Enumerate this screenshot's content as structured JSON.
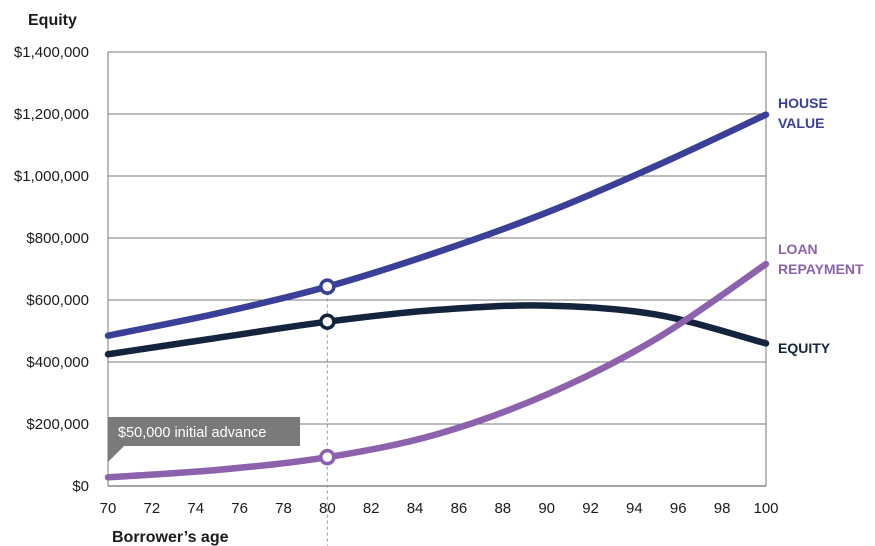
{
  "chart_data": {
    "type": "line",
    "ylabel": "Equity",
    "xlabel": "Borrower’s age",
    "xlim": [
      70,
      100
    ],
    "ylim": [
      0,
      1400000
    ],
    "x_ticks": [
      "70",
      "72",
      "74",
      "76",
      "78",
      "80",
      "82",
      "84",
      "86",
      "88",
      "90",
      "92",
      "94",
      "96",
      "98",
      "100"
    ],
    "y_ticks": [
      "$0",
      "$200,000",
      "$400,000",
      "$600,000",
      "$800,000",
      "$1,000,000",
      "$1,200,000",
      "$1,400,000"
    ],
    "grid": "horizontal",
    "series": [
      {
        "name": "HOUSE VALUE",
        "label_lines": [
          "HOUSE",
          "VALUE"
        ],
        "color": "#3a3f98",
        "x": [
          70,
          75,
          80,
          85,
          90,
          95,
          100
        ],
        "y": [
          485000,
          557000,
          643000,
          754000,
          882000,
          1033000,
          1198000
        ]
      },
      {
        "name": "EQUITY",
        "label_lines": [
          "EQUITY"
        ],
        "color": "#14243c",
        "x": [
          70,
          75,
          80,
          85,
          90,
          95,
          100
        ],
        "y": [
          425000,
          478000,
          530000,
          568000,
          582000,
          553000,
          460000
        ]
      },
      {
        "name": "LOAN REPAYMENT",
        "label_lines": [
          "LOAN",
          "REPAYMENT"
        ],
        "color": "#8c62ad",
        "x": [
          70,
          75,
          80,
          85,
          90,
          95,
          100
        ],
        "y": [
          28000,
          52000,
          93000,
          167000,
          295000,
          475000,
          716000
        ]
      }
    ],
    "markers": [
      {
        "x": 80,
        "y": 643000,
        "series": "HOUSE VALUE"
      },
      {
        "x": 80,
        "y": 530000,
        "series": "EQUITY"
      },
      {
        "x": 80,
        "y": 93000,
        "series": "LOAN REPAYMENT"
      }
    ],
    "reference_line": {
      "x": 80,
      "style": "dashed"
    },
    "annotation": {
      "text": "$50,000 initial advance",
      "color": "#7a7a7a"
    }
  }
}
